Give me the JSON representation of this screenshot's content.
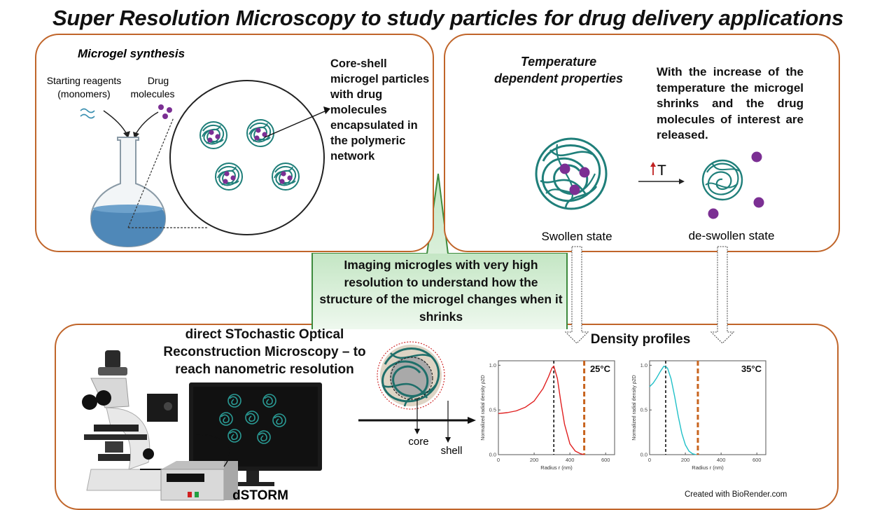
{
  "title": "Super Resolution Microscopy to study particles for drug delivery applications",
  "synthesis": {
    "heading": "Microgel synthesis",
    "reagents_line1": "Starting reagents",
    "reagents_line2": "(monomers)",
    "drug_line1": "Drug",
    "drug_line2": "molecules",
    "core_shell_text": "Core-shell microgel particles with drug molecules encapsulated in the polymeric network"
  },
  "temperature": {
    "heading_line1": "Temperature",
    "heading_line2": "dependent properties",
    "description": "With the increase of the temperature the microgel shrinks and the drug molecules of interest are released.",
    "arrow_label": "T",
    "swollen_label": "Swollen state",
    "deswollen_label": "de-swollen state"
  },
  "callout": {
    "text": "Imaging microgles with very high resolution to understand how the structure of the microgel changes when it shrinks"
  },
  "dstorm": {
    "description": "direct STochastic Optical Reconstruction Microscopy – to reach nanometric resolution",
    "label": "dSTORM",
    "core_label": "core",
    "shell_label": "shell",
    "density_heading": "Density profiles",
    "credit": "Created with BioRender.com"
  },
  "chart_data": [
    {
      "type": "line",
      "annotation": "25°C",
      "xlabel": "Radius r (nm)",
      "ylabel": "Normalized radial density ρ2D",
      "xlim": [
        0,
        650
      ],
      "ylim": [
        0,
        1.05
      ],
      "xticks": [
        "0",
        "200",
        "400",
        "600"
      ],
      "yticks": [
        "0.0",
        "0.5",
        "1.0"
      ],
      "series": [
        {
          "color": "#e02020",
          "x": [
            0,
            50,
            100,
            150,
            200,
            250,
            280,
            300,
            310,
            330,
            350,
            370,
            400,
            430,
            460,
            480
          ],
          "y": [
            0.46,
            0.47,
            0.49,
            0.53,
            0.6,
            0.74,
            0.87,
            0.97,
            0.99,
            0.85,
            0.58,
            0.34,
            0.12,
            0.04,
            0.01,
            0.0
          ]
        }
      ],
      "vlines": [
        {
          "x": 310,
          "color": "#111111",
          "style": "dashed"
        },
        {
          "x": 480,
          "color": "#c8641e",
          "style": "dashed"
        }
      ],
      "grid": false
    },
    {
      "type": "line",
      "annotation": "35°C",
      "xlabel": "Radius r (nm)",
      "ylabel": "Normalized radial density ρ2D",
      "xlim": [
        0,
        650
      ],
      "ylim": [
        0,
        1.05
      ],
      "xticks": [
        "0",
        "200",
        "400",
        "600"
      ],
      "yticks": [
        "0.0",
        "0.5",
        "1.0"
      ],
      "series": [
        {
          "color": "#20c0c8",
          "x": [
            0,
            20,
            40,
            60,
            80,
            100,
            120,
            140,
            160,
            180,
            200,
            220,
            240,
            260
          ],
          "y": [
            0.76,
            0.8,
            0.86,
            0.93,
            0.99,
            0.97,
            0.85,
            0.65,
            0.43,
            0.24,
            0.11,
            0.04,
            0.01,
            0.0
          ]
        }
      ],
      "vlines": [
        {
          "x": 90,
          "color": "#111111",
          "style": "dashed"
        },
        {
          "x": 270,
          "color": "#c8641e",
          "style": "dashed"
        }
      ],
      "grid": false
    }
  ]
}
